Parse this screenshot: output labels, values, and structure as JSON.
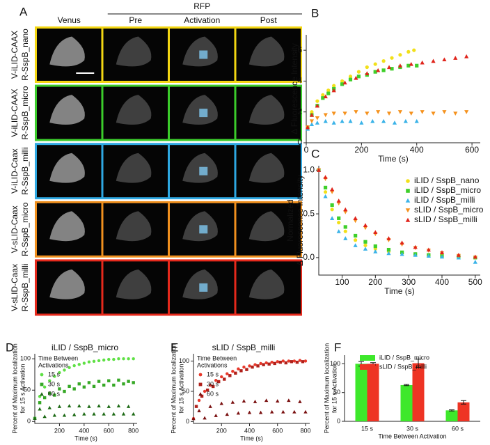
{
  "image_panel": {
    "panel": "A",
    "group_label": "RFP",
    "columns": [
      "Venus",
      "Pre",
      "Activation",
      "Post"
    ],
    "column_colors": [
      "#2fa82f",
      "#111111",
      "#2aa7df",
      "#111111"
    ],
    "rows": [
      {
        "label_lines": [
          "V-iLID-CAAX",
          "R-SspB_nano"
        ],
        "frame_color": "#f3d612"
      },
      {
        "label_lines": [
          "V-iLID-CAAX",
          "R-SspB_micro"
        ],
        "frame_color": "#3bcc2b"
      },
      {
        "label_lines": [
          "V-iLID-Caax",
          "R-SspB_milli"
        ],
        "frame_color": "#2ea8e2"
      },
      {
        "label_lines": [
          "V-sLID-Caax",
          "R-SspB_micro"
        ],
        "frame_color": "#f0901e"
      },
      {
        "label_lines": [
          "V-sLID-Caax",
          "R-SspB_milli"
        ],
        "frame_color": "#e5291c"
      }
    ]
  },
  "chart_data": [
    {
      "panel": "B",
      "type": "scatter",
      "xlabel": "Time (s)",
      "ylabel": "Δ Fluorescence Intensity",
      "xlim": [
        0,
        630
      ],
      "ylim": [
        0,
        7
      ],
      "xticks": [
        0,
        200,
        400,
        600
      ],
      "yticks": [
        0,
        2,
        4,
        6
      ],
      "series": [
        {
          "color": "#f2e01a",
          "marker": "circle",
          "x": [
            5,
            20,
            40,
            60,
            80,
            100,
            130,
            160,
            190,
            220,
            250,
            280,
            310,
            340,
            370,
            390
          ],
          "values": [
            1.0,
            2.0,
            2.7,
            3.1,
            3.4,
            3.7,
            4.0,
            4.3,
            4.6,
            4.9,
            5.1,
            5.3,
            5.5,
            5.7,
            5.9,
            6.0
          ]
        },
        {
          "color": "#3ecf2a",
          "marker": "square",
          "x": [
            5,
            20,
            40,
            60,
            80,
            100,
            130,
            160,
            190,
            220,
            250,
            280,
            310,
            340,
            370,
            400
          ],
          "values": [
            1.0,
            1.8,
            2.4,
            2.9,
            3.2,
            3.5,
            3.8,
            4.1,
            4.3,
            4.4,
            4.6,
            4.7,
            4.8,
            4.9,
            5.0,
            5.0
          ]
        },
        {
          "color": "#3bb3e8",
          "marker": "triangle",
          "x": [
            5,
            20,
            40,
            70,
            100,
            130,
            160,
            200,
            240,
            280,
            320,
            360,
            400
          ],
          "values": [
            0.9,
            1.2,
            1.3,
            1.4,
            1.3,
            1.4,
            1.4,
            1.3,
            1.4,
            1.4,
            1.3,
            1.4,
            1.4
          ]
        },
        {
          "color": "#f5921e",
          "marker": "triangle-down",
          "x": [
            5,
            20,
            40,
            70,
            100,
            140,
            180,
            220,
            260,
            300,
            340,
            380,
            420,
            460,
            500,
            540,
            580
          ],
          "values": [
            1.0,
            1.4,
            1.6,
            1.8,
            1.9,
            1.9,
            2.0,
            1.9,
            2.0,
            1.9,
            2.0,
            1.9,
            2.0,
            1.9,
            2.0,
            1.9,
            2.0
          ]
        },
        {
          "color": "#e0241b",
          "marker": "triangle",
          "x": [
            5,
            20,
            40,
            70,
            100,
            140,
            180,
            220,
            260,
            300,
            340,
            380,
            420,
            460,
            500,
            540,
            580
          ],
          "values": [
            1.0,
            1.8,
            2.4,
            3.0,
            3.4,
            3.9,
            4.2,
            4.5,
            4.7,
            4.9,
            5.0,
            5.1,
            5.2,
            5.3,
            5.4,
            5.5,
            5.6
          ]
        }
      ]
    },
    {
      "panel": "C",
      "type": "scatter",
      "xlabel": "Time (s)",
      "ylabel": [
        "Normalized",
        "Δ Fluorescence Intensity"
      ],
      "xlim": [
        30,
        515
      ],
      "ylim": [
        -0.2,
        1.05
      ],
      "xticks": [
        100,
        200,
        300,
        400,
        500
      ],
      "yticks": [
        {
          "value": 0,
          "label": "0.0"
        },
        {
          "value": 0.5,
          "label": "0.5"
        },
        {
          "value": 1,
          "label": "1.0"
        }
      ],
      "series": [
        {
          "name": "iLID / SspB_nano",
          "color": "#f2e01a",
          "marker": "circle",
          "x": [
            30,
            50,
            70,
            90,
            110,
            140,
            170,
            200,
            240,
            280,
            320,
            360,
            400,
            450,
            500
          ],
          "values": [
            1.0,
            0.75,
            0.55,
            0.4,
            0.3,
            0.2,
            0.14,
            0.1,
            0.07,
            0.05,
            0.04,
            0.03,
            0.02,
            0.01,
            0.0
          ]
        },
        {
          "name": "iLID / SspB_micro",
          "color": "#3ecf2a",
          "marker": "square",
          "x": [
            30,
            50,
            70,
            90,
            110,
            140,
            170,
            200,
            240,
            280,
            320,
            360,
            400,
            450,
            500
          ],
          "values": [
            1.0,
            0.8,
            0.6,
            0.45,
            0.35,
            0.25,
            0.18,
            0.13,
            0.09,
            0.06,
            0.04,
            0.03,
            0.02,
            0.01,
            0.0
          ]
        },
        {
          "name": "iLID / SspB_milli",
          "color": "#3bb3e8",
          "marker": "triangle",
          "x": [
            30,
            50,
            70,
            90,
            110,
            140,
            170,
            200,
            240,
            280,
            320,
            360,
            400,
            450,
            500
          ],
          "values": [
            1.0,
            0.7,
            0.45,
            0.3,
            0.22,
            0.14,
            0.1,
            0.07,
            0.05,
            0.04,
            0.03,
            0.02,
            0.01,
            0.0,
            -0.05
          ]
        },
        {
          "name": "sLID / SspB_micro",
          "color": "#f5921e",
          "marker": "triangle-down",
          "x": [
            30,
            50,
            70,
            90,
            110,
            140,
            170,
            200,
            240,
            280,
            320,
            360,
            400,
            450,
            500
          ],
          "values": [
            1.0,
            0.9,
            0.75,
            0.62,
            0.52,
            0.42,
            0.34,
            0.27,
            0.2,
            0.15,
            0.11,
            0.08,
            0.05,
            0.02,
            0.0
          ]
        },
        {
          "name": "sLID / SspB_milli",
          "color": "#e0241b",
          "marker": "triangle",
          "x": [
            30,
            50,
            70,
            90,
            110,
            140,
            170,
            200,
            240,
            280,
            320,
            360,
            400,
            450,
            500
          ],
          "values": [
            1.0,
            0.92,
            0.78,
            0.65,
            0.55,
            0.45,
            0.37,
            0.29,
            0.22,
            0.17,
            0.12,
            0.09,
            0.06,
            0.03,
            0.01
          ]
        }
      ]
    },
    {
      "panel": "D",
      "type": "scatter",
      "title": "iLID / SspB_micro",
      "xlabel": "Time (s)",
      "ylabel": [
        "Percent of Maximum localization",
        "for 15 s Activation"
      ],
      "legend_title": [
        "Time Between",
        "Activations"
      ],
      "xlim": [
        0,
        830
      ],
      "ylim": [
        -3,
        108
      ],
      "xticks": [
        200,
        400,
        600,
        800
      ],
      "yticks": [
        0,
        50,
        100
      ],
      "series": [
        {
          "name": "15 s",
          "color": "#5fe045",
          "marker": "circle",
          "x": [
            0,
            40,
            80,
            120,
            160,
            200,
            240,
            280,
            320,
            360,
            400,
            440,
            480,
            520,
            560,
            600,
            640,
            680,
            720,
            760,
            800
          ],
          "values": [
            5,
            40,
            55,
            65,
            72,
            78,
            82,
            86,
            89,
            91,
            93,
            95,
            96,
            97,
            98,
            99,
            99,
            100,
            100,
            100,
            100
          ]
        },
        {
          "name": "30 s",
          "color": "#36a826",
          "marker": "square",
          "x": [
            0,
            40,
            80,
            120,
            160,
            200,
            240,
            280,
            320,
            360,
            400,
            440,
            480,
            520,
            560,
            600,
            640,
            680,
            720,
            760,
            800
          ],
          "values": [
            5,
            30,
            38,
            45,
            42,
            52,
            48,
            56,
            52,
            60,
            55,
            62,
            56,
            64,
            58,
            65,
            58,
            66,
            60,
            64,
            62
          ]
        },
        {
          "name": "60 s",
          "color": "#1d6a15",
          "marker": "triangle",
          "x": [
            0,
            40,
            80,
            120,
            160,
            200,
            240,
            280,
            320,
            360,
            400,
            440,
            480,
            520,
            560,
            600,
            640,
            680,
            720,
            760,
            800
          ],
          "values": [
            5,
            20,
            8,
            22,
            10,
            24,
            10,
            25,
            11,
            25,
            12,
            24,
            12,
            25,
            12,
            24,
            12,
            25,
            12,
            24,
            12
          ]
        }
      ]
    },
    {
      "panel": "E",
      "type": "scatter",
      "title": "sLID / SspB_milli",
      "xlabel": "Time (s)",
      "ylabel": [
        "Percent of Maximum localization",
        "for 15 s Activation"
      ],
      "legend_title": [
        "Time Between",
        "Activations"
      ],
      "xlim": [
        0,
        830
      ],
      "ylim": [
        -3,
        112
      ],
      "xticks": [
        200,
        400,
        600,
        800
      ],
      "yticks": [
        0,
        50,
        100
      ],
      "series": [
        {
          "name": "15 s",
          "color": "#e8382a",
          "marker": "circle",
          "x": [
            0,
            40,
            80,
            120,
            160,
            200,
            240,
            280,
            320,
            360,
            400,
            440,
            480,
            520,
            560,
            600,
            640,
            680,
            720,
            760,
            800
          ],
          "values": [
            5,
            35,
            50,
            60,
            68,
            74,
            79,
            83,
            87,
            90,
            92,
            94,
            96,
            97,
            98,
            99,
            100,
            100,
            100,
            101,
            100
          ]
        },
        {
          "name": "30 s",
          "color": "#b0201a",
          "marker": "square",
          "x": [
            20,
            60,
            100,
            140,
            180,
            220,
            260,
            300,
            340,
            380,
            420,
            460,
            500,
            540,
            580,
            620,
            660,
            700,
            740,
            780
          ],
          "values": [
            25,
            42,
            52,
            58,
            66,
            70,
            76,
            80,
            84,
            86,
            90,
            92,
            94,
            95,
            96,
            98,
            97,
            99,
            98,
            99
          ]
        },
        {
          "name": "60 s",
          "color": "#7a1010",
          "marker": "triangle",
          "x": [
            0,
            40,
            80,
            120,
            160,
            200,
            240,
            280,
            320,
            360,
            400,
            440,
            480,
            520,
            560,
            600,
            640,
            680,
            720,
            760,
            800
          ],
          "values": [
            5,
            18,
            6,
            25,
            10,
            30,
            12,
            32,
            14,
            34,
            15,
            33,
            15,
            35,
            16,
            34,
            16,
            35,
            16,
            33,
            16
          ]
        }
      ]
    },
    {
      "panel": "F",
      "type": "bar",
      "xlabel": "Time Between Activation",
      "ylabel": [
        "Percent of Maximum localization",
        "for 15 s Activation"
      ],
      "categories": [
        "15 s",
        "30 s",
        "60 s"
      ],
      "ylim": [
        0,
        115
      ],
      "yticks": [
        0,
        50,
        100
      ],
      "series": [
        {
          "name": "iLID / SspB_micro",
          "color": "#3ee82b",
          "values": [
            100,
            63,
            19
          ],
          "errors": [
            4,
            1,
            1
          ]
        },
        {
          "name": "sLID / SspB_milli",
          "color": "#ee3424",
          "values": [
            100,
            101,
            33
          ],
          "errors": [
            2,
            7,
            3
          ]
        }
      ]
    }
  ]
}
